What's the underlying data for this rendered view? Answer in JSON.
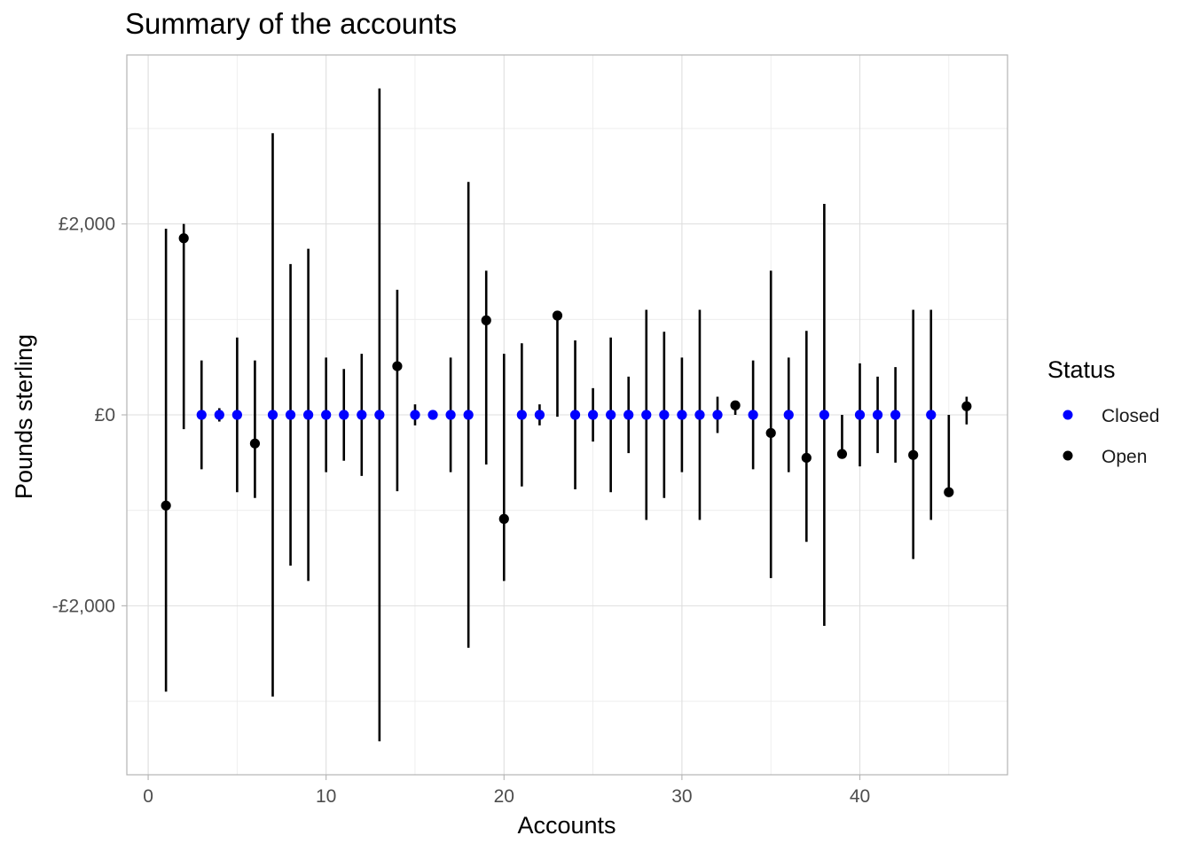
{
  "chart_data": {
    "type": "scatter",
    "title": "Summary of the accounts",
    "xlabel": "Accounts",
    "ylabel": "Pounds sterling",
    "xlim": [
      -1.2,
      48.3
    ],
    "ylim": [
      -3770,
      3770
    ],
    "x_ticks": [
      0,
      10,
      20,
      30,
      40
    ],
    "x_tick_labels": [
      "0",
      "10",
      "20",
      "30",
      "40"
    ],
    "y_ticks": [
      -2000,
      0,
      2000
    ],
    "y_tick_labels": [
      "-£2,000",
      "£0",
      "£2,000"
    ],
    "grid": true,
    "legend": {
      "title": "Status",
      "placement": "right",
      "items": [
        {
          "label": "Closed",
          "color": "#0000ff"
        },
        {
          "label": "Open",
          "color": "#000000"
        }
      ]
    },
    "colors": {
      "Closed": "#0000ff",
      "Open": "#000000",
      "error_bar": "#000000"
    },
    "points": [
      {
        "x": 1,
        "y": -950,
        "ymin": -2900,
        "ymax": 1950,
        "status": "Open"
      },
      {
        "x": 2,
        "y": 1850,
        "ymin": -150,
        "ymax": 2000,
        "status": "Open"
      },
      {
        "x": 3,
        "y": 0,
        "ymin": -570,
        "ymax": 570,
        "status": "Closed"
      },
      {
        "x": 4,
        "y": 0,
        "ymin": -70,
        "ymax": 70,
        "status": "Closed"
      },
      {
        "x": 5,
        "y": 0,
        "ymin": -810,
        "ymax": 810,
        "status": "Closed"
      },
      {
        "x": 6,
        "y": -300,
        "ymin": -870,
        "ymax": 570,
        "status": "Open"
      },
      {
        "x": 7,
        "y": 0,
        "ymin": -2950,
        "ymax": 2950,
        "status": "Closed"
      },
      {
        "x": 8,
        "y": 0,
        "ymin": -1580,
        "ymax": 1580,
        "status": "Closed"
      },
      {
        "x": 9,
        "y": 0,
        "ymin": -1740,
        "ymax": 1740,
        "status": "Closed"
      },
      {
        "x": 10,
        "y": 0,
        "ymin": -600,
        "ymax": 600,
        "status": "Closed"
      },
      {
        "x": 11,
        "y": 0,
        "ymin": -480,
        "ymax": 480,
        "status": "Closed"
      },
      {
        "x": 12,
        "y": 0,
        "ymin": -640,
        "ymax": 640,
        "status": "Closed"
      },
      {
        "x": 13,
        "y": 0,
        "ymin": -3420,
        "ymax": 3420,
        "status": "Closed"
      },
      {
        "x": 14,
        "y": 510,
        "ymin": -800,
        "ymax": 1310,
        "status": "Open"
      },
      {
        "x": 15,
        "y": 0,
        "ymin": -110,
        "ymax": 110,
        "status": "Closed"
      },
      {
        "x": 16,
        "y": 0,
        "ymin": 0,
        "ymax": 0,
        "status": "Closed"
      },
      {
        "x": 17,
        "y": 0,
        "ymin": -600,
        "ymax": 600,
        "status": "Closed"
      },
      {
        "x": 18,
        "y": 0,
        "ymin": -2440,
        "ymax": 2440,
        "status": "Closed"
      },
      {
        "x": 19,
        "y": 990,
        "ymin": -520,
        "ymax": 1510,
        "status": "Open"
      },
      {
        "x": 20,
        "y": -1090,
        "ymin": -1740,
        "ymax": 640,
        "status": "Open"
      },
      {
        "x": 21,
        "y": 0,
        "ymin": -750,
        "ymax": 750,
        "status": "Closed"
      },
      {
        "x": 22,
        "y": 0,
        "ymin": -110,
        "ymax": 110,
        "status": "Closed"
      },
      {
        "x": 23,
        "y": 1040,
        "ymin": -20,
        "ymax": 1040,
        "status": "Open"
      },
      {
        "x": 24,
        "y": 0,
        "ymin": -780,
        "ymax": 780,
        "status": "Closed"
      },
      {
        "x": 25,
        "y": 0,
        "ymin": -280,
        "ymax": 280,
        "status": "Closed"
      },
      {
        "x": 26,
        "y": 0,
        "ymin": -810,
        "ymax": 810,
        "status": "Closed"
      },
      {
        "x": 27,
        "y": 0,
        "ymin": -400,
        "ymax": 400,
        "status": "Closed"
      },
      {
        "x": 28,
        "y": 0,
        "ymin": -1100,
        "ymax": 1100,
        "status": "Closed"
      },
      {
        "x": 29,
        "y": 0,
        "ymin": -870,
        "ymax": 870,
        "status": "Closed"
      },
      {
        "x": 30,
        "y": 0,
        "ymin": -600,
        "ymax": 600,
        "status": "Closed"
      },
      {
        "x": 31,
        "y": 0,
        "ymin": -1100,
        "ymax": 1100,
        "status": "Closed"
      },
      {
        "x": 32,
        "y": 0,
        "ymin": -190,
        "ymax": 190,
        "status": "Closed"
      },
      {
        "x": 33,
        "y": 100,
        "ymin": 0,
        "ymax": 100,
        "status": "Open"
      },
      {
        "x": 34,
        "y": 0,
        "ymin": -570,
        "ymax": 570,
        "status": "Closed"
      },
      {
        "x": 35,
        "y": -190,
        "ymin": -1710,
        "ymax": 1510,
        "status": "Open"
      },
      {
        "x": 36,
        "y": 0,
        "ymin": -600,
        "ymax": 600,
        "status": "Closed"
      },
      {
        "x": 37,
        "y": -450,
        "ymin": -1330,
        "ymax": 880,
        "status": "Open"
      },
      {
        "x": 38,
        "y": 0,
        "ymin": -2210,
        "ymax": 2210,
        "status": "Closed"
      },
      {
        "x": 39,
        "y": -410,
        "ymin": -410,
        "ymax": 0,
        "status": "Open"
      },
      {
        "x": 40,
        "y": 0,
        "ymin": -540,
        "ymax": 540,
        "status": "Closed"
      },
      {
        "x": 41,
        "y": 0,
        "ymin": -400,
        "ymax": 400,
        "status": "Closed"
      },
      {
        "x": 42,
        "y": 0,
        "ymin": -500,
        "ymax": 500,
        "status": "Closed"
      },
      {
        "x": 43,
        "y": -420,
        "ymin": -1510,
        "ymax": 1100,
        "status": "Open"
      },
      {
        "x": 44,
        "y": 0,
        "ymin": -1100,
        "ymax": 1100,
        "status": "Closed"
      },
      {
        "x": 45,
        "y": -810,
        "ymin": -810,
        "ymax": 0,
        "status": "Open"
      },
      {
        "x": 46,
        "y": 90,
        "ymin": -100,
        "ymax": 190,
        "status": "Open"
      }
    ]
  }
}
